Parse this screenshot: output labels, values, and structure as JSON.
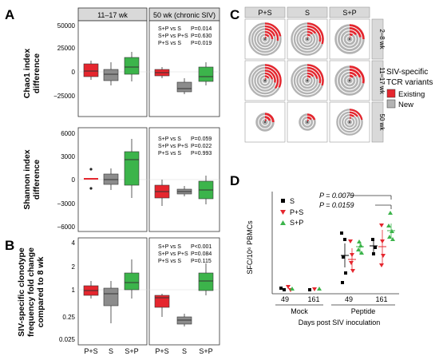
{
  "panel_a": {
    "letter": "A",
    "facets": [
      "11–17 wk",
      "50 wk (chronic SIV)"
    ],
    "rows": [
      {
        "ylabel": [
          "Chao1 index",
          "difference"
        ],
        "ticks": [
          "50000",
          "25000",
          "0",
          "−25000"
        ],
        "stats": [
          [
            "S+P vs S",
            "P=0.014"
          ],
          [
            "S+P vs P+S",
            "P=0.630"
          ],
          [
            "P+S vs S",
            "P=0.019"
          ]
        ]
      },
      {
        "ylabel": [
          "Shannon index",
          "difference"
        ],
        "ticks": [
          "6000",
          "3000",
          "0",
          "−3000",
          "−6000"
        ],
        "stats": [
          [
            "S+P vs S",
            "P=0.059"
          ],
          [
            "S+P vs P+S",
            "P=0.022"
          ],
          [
            "P+S vs S",
            "P=0.993"
          ]
        ]
      }
    ]
  },
  "panel_b": {
    "letter": "B",
    "ylabel": [
      "SIV-specific clonotype",
      "frequency fold change",
      "compared to 8 wk"
    ],
    "ticks": [
      "4",
      "2",
      "1",
      "0.25",
      "0.025"
    ],
    "stats": [
      [
        "S+P vs S",
        "P<0.001"
      ],
      [
        "S+P vs P+S",
        "P=0.084"
      ],
      [
        "P+S vs S",
        "P=0.115"
      ]
    ],
    "xcats": [
      "P+S",
      "S",
      "S+P"
    ]
  },
  "panel_c": {
    "letter": "C",
    "cols": [
      "P+S",
      "S",
      "S+P"
    ],
    "rows": [
      "2–8 wk",
      "11–17 wk",
      "50 wk"
    ],
    "legend_title": [
      "SIV-specific",
      "TCR variants"
    ],
    "legend_items": [
      "Existing",
      "New"
    ]
  },
  "panel_d": {
    "letter": "D",
    "ylabel": "SFC/10⁶ PBMCs",
    "xlabel": "Days post SIV inoculation",
    "groups": [
      "Mock",
      "Peptide"
    ],
    "days": [
      "49",
      "161",
      "49",
      "161"
    ],
    "legend": [
      "S",
      "P+S",
      "S+P"
    ],
    "pvals": [
      "P = 0.0079",
      "P = 0.0159"
    ]
  },
  "colors": {
    "P+S": "#e5262e",
    "S": "#8c8c8c",
    "S+P": "#3cb44b",
    "new_ring": "#b3b3b3",
    "strip": "#d9d9d9",
    "legend_S": "#000000"
  }
}
